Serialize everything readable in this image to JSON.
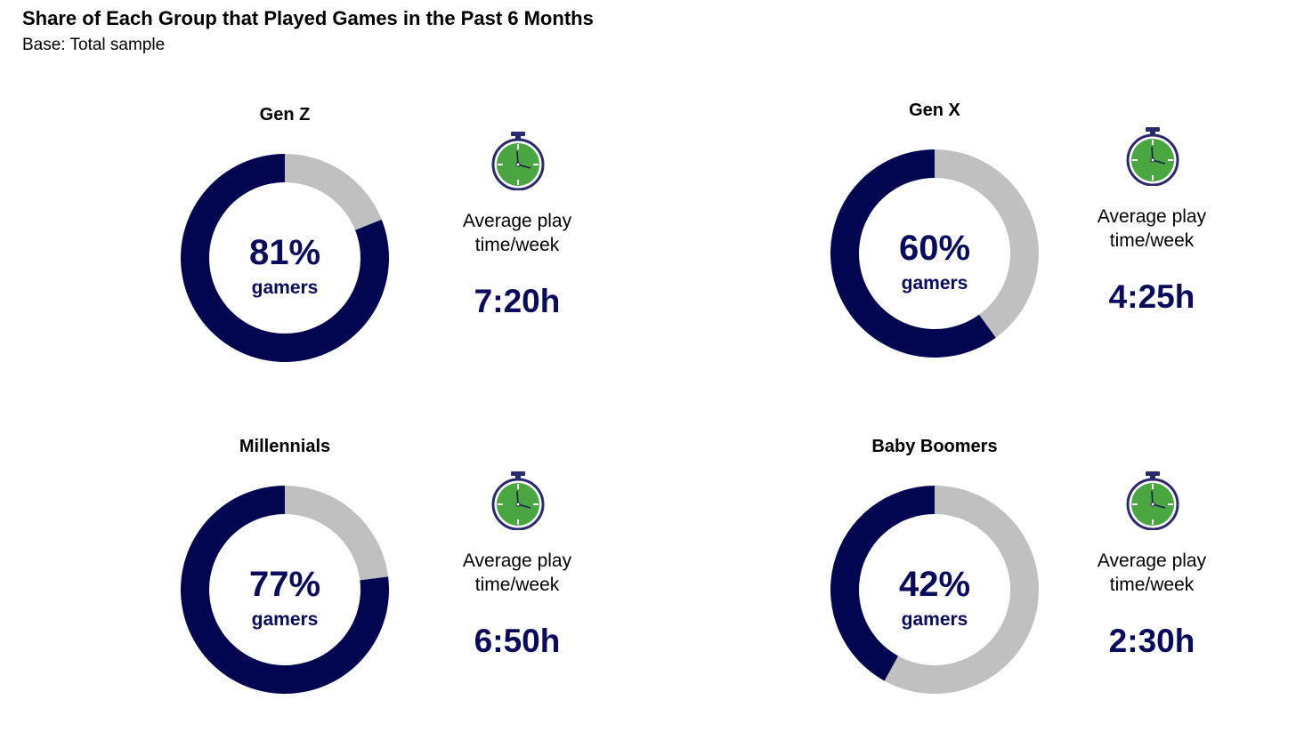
{
  "chart_data": {
    "type": "pie",
    "title": "Share of Each Group that Played Games in the Past 6 Months",
    "subtitle": "Base: Total sample",
    "center_suffix": "gamers",
    "avg_label_line1": "Average play",
    "avg_label_line2": "time/week",
    "colors": {
      "gamers": "#020550",
      "rest": "#c0c0c0",
      "watch_face": "#4aa640"
    },
    "groups": [
      {
        "name": "Gen Z",
        "value": 81,
        "pct_label": "81%",
        "avg_time": "7:20h"
      },
      {
        "name": "Gen X",
        "value": 60,
        "pct_label": "60%",
        "avg_time": "4:25h"
      },
      {
        "name": "Millennials",
        "value": 77,
        "pct_label": "77%",
        "avg_time": "6:50h"
      },
      {
        "name": "Baby Boomers",
        "value": 42,
        "pct_label": "42%",
        "avg_time": "2:30h"
      }
    ]
  }
}
